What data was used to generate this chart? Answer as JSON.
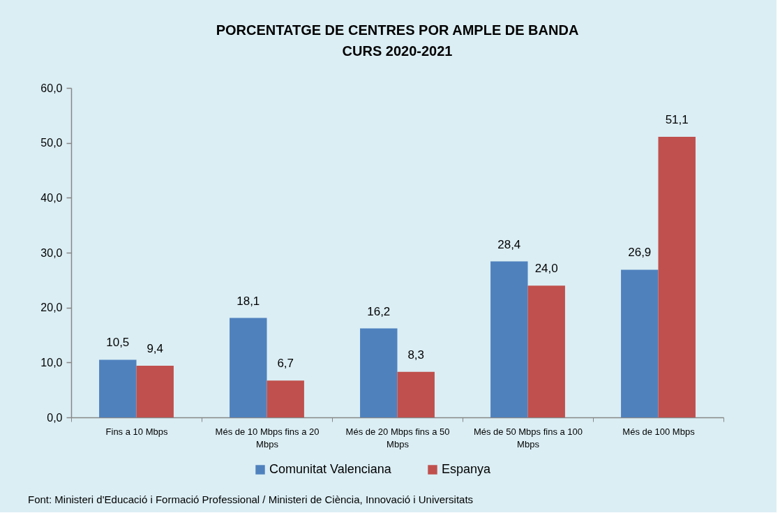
{
  "chart_data": {
    "type": "bar",
    "title": "PORCENTATGE DE CENTRES POR AMPLE DE BANDA",
    "subtitle": "CURS 2020-2021",
    "categories": [
      "Fins a 10 Mbps",
      "Més de 10 Mbps fins a 20 Mbps",
      "Més de 20 Mbps fins a 50 Mbps",
      "Més de 50 Mbps fins a 100 Mbps",
      "Més de 100 Mbps"
    ],
    "series": [
      {
        "name": "Comunitat Valenciana",
        "color": "#4f81bd",
        "values": [
          10.5,
          18.1,
          16.2,
          28.4,
          26.9
        ],
        "value_labels": [
          "10,5",
          "18,1",
          "16,2",
          "28,4",
          "26,9"
        ]
      },
      {
        "name": "Espanya",
        "color": "#c0504d",
        "values": [
          9.4,
          6.7,
          8.3,
          24.0,
          51.1
        ],
        "value_labels": [
          "9,4",
          "6,7",
          "8,3",
          "24,0",
          "51,1"
        ]
      }
    ],
    "ylim": [
      0,
      60
    ],
    "yticks": [
      {
        "value": 0,
        "label": "0,0"
      },
      {
        "value": 10,
        "label": "10,0"
      },
      {
        "value": 20,
        "label": "20,0"
      },
      {
        "value": 30,
        "label": "30,0"
      },
      {
        "value": 40,
        "label": "40,0"
      },
      {
        "value": 50,
        "label": "50,0"
      },
      {
        "value": 60,
        "label": "60,0"
      }
    ],
    "grid": false,
    "legend": "bottom",
    "annotations": [
      "Font: Ministeri d'Educació i Formació Professional / Ministeri de Ciència, Innovació i Universitats"
    ]
  }
}
